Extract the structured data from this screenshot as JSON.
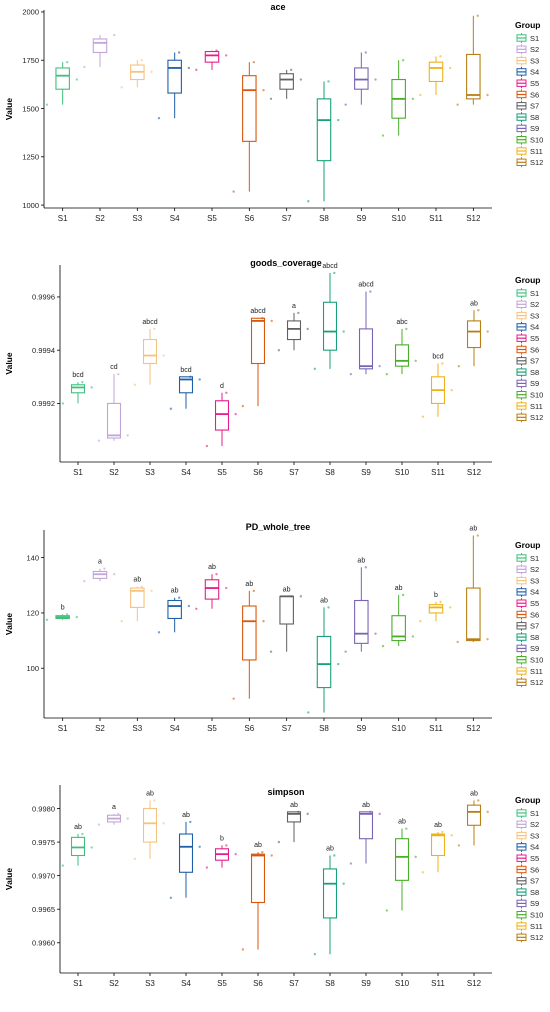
{
  "legend_title": "Group",
  "groups": [
    "S1",
    "S2",
    "S3",
    "S4",
    "S5",
    "S6",
    "S7",
    "S8",
    "S9",
    "S10",
    "S11",
    "S12"
  ],
  "colors": [
    "#3ec07c",
    "#c2a5d8",
    "#f7c27e",
    "#1f5fa8",
    "#e51d8a",
    "#d9570d",
    "#606060",
    "#18a07a",
    "#7a63b3",
    "#48ad28",
    "#f0b21a",
    "#b87e16"
  ],
  "chart_data": [
    {
      "type": "box",
      "title": "ace",
      "xlabel": "",
      "ylabel": "Value",
      "ylim": [
        985,
        2010
      ],
      "yticks": [
        1000,
        1250,
        1500,
        1750,
        2000
      ],
      "ytick_labels": [
        "1000",
        "1250",
        "1500",
        "1750",
        "2000"
      ],
      "categories": [
        "S1",
        "S2",
        "S3",
        "S4",
        "S5",
        "S6",
        "S7",
        "S8",
        "S9",
        "S10",
        "S11",
        "S12"
      ],
      "boxes": [
        {
          "min": 1520,
          "q1": 1600,
          "median": 1670,
          "q3": 1710,
          "max": 1740
        },
        {
          "min": 1715,
          "q1": 1790,
          "median": 1840,
          "q3": 1860,
          "max": 1880
        },
        {
          "min": 1610,
          "q1": 1650,
          "median": 1690,
          "q3": 1725,
          "max": 1750
        },
        {
          "min": 1450,
          "q1": 1580,
          "median": 1710,
          "q3": 1750,
          "max": 1790
        },
        {
          "min": 1700,
          "q1": 1740,
          "median": 1775,
          "q3": 1795,
          "max": 1800
        },
        {
          "min": 1070,
          "q1": 1330,
          "median": 1595,
          "q3": 1670,
          "max": 1740
        },
        {
          "min": 1550,
          "q1": 1600,
          "median": 1650,
          "q3": 1680,
          "max": 1700
        },
        {
          "min": 1020,
          "q1": 1230,
          "median": 1440,
          "q3": 1550,
          "max": 1640
        },
        {
          "min": 1520,
          "q1": 1600,
          "median": 1650,
          "q3": 1710,
          "max": 1790
        },
        {
          "min": 1360,
          "q1": 1450,
          "median": 1550,
          "q3": 1650,
          "max": 1750
        },
        {
          "min": 1570,
          "q1": 1640,
          "median": 1710,
          "q3": 1740,
          "max": 1770
        },
        {
          "min": 1520,
          "q1": 1550,
          "median": 1570,
          "q3": 1780,
          "max": 1980
        }
      ],
      "points": [
        [
          1520,
          1650,
          1740
        ],
        [
          1715,
          1880,
          1840
        ],
        [
          1610,
          1690,
          1750
        ],
        [
          1450,
          1710,
          1790
        ],
        [
          1700,
          1775,
          1800
        ],
        [
          1070,
          1595,
          1740
        ],
        [
          1550,
          1650,
          1700
        ],
        [
          1020,
          1440,
          1640
        ],
        [
          1520,
          1650,
          1790
        ],
        [
          1360,
          1550,
          1750
        ],
        [
          1570,
          1710,
          1770
        ],
        [
          1520,
          1570,
          1980
        ]
      ],
      "letters": [
        "",
        "",
        "",
        "",
        "",
        "",
        "",
        "",
        "",
        "",
        "",
        ""
      ]
    },
    {
      "type": "box",
      "title": "goods_coverage",
      "xlabel": "",
      "ylabel": "Value",
      "ylim": [
        0.99898,
        0.99972
      ],
      "yticks": [
        0.9992,
        0.9994,
        0.9996
      ],
      "ytick_labels": [
        "0.9992",
        "0.9994",
        "0.9996"
      ],
      "categories": [
        "S1",
        "S2",
        "S3",
        "S4",
        "S5",
        "S6",
        "S7",
        "S8",
        "S9",
        "S10",
        "S11",
        "S12"
      ],
      "boxes": [
        {
          "min": 0.9992,
          "q1": 0.99924,
          "median": 0.99926,
          "q3": 0.99927,
          "max": 0.99928
        },
        {
          "min": 0.99906,
          "q1": 0.99907,
          "median": 0.99908,
          "q3": 0.9992,
          "max": 0.99931
        },
        {
          "min": 0.99927,
          "q1": 0.99935,
          "median": 0.99938,
          "q3": 0.99944,
          "max": 0.99948
        },
        {
          "min": 0.99918,
          "q1": 0.99924,
          "median": 0.99929,
          "q3": 0.9993,
          "max": 0.9993
        },
        {
          "min": 0.99904,
          "q1": 0.9991,
          "median": 0.99916,
          "q3": 0.99921,
          "max": 0.99924
        },
        {
          "min": 0.99919,
          "q1": 0.99935,
          "median": 0.99951,
          "q3": 0.99952,
          "max": 0.99952
        },
        {
          "min": 0.9994,
          "q1": 0.99944,
          "median": 0.99948,
          "q3": 0.99951,
          "max": 0.99954
        },
        {
          "min": 0.99933,
          "q1": 0.9994,
          "median": 0.99947,
          "q3": 0.99958,
          "max": 0.99969
        },
        {
          "min": 0.99931,
          "q1": 0.99933,
          "median": 0.99934,
          "q3": 0.99948,
          "max": 0.99962
        },
        {
          "min": 0.99931,
          "q1": 0.99934,
          "median": 0.99936,
          "q3": 0.99942,
          "max": 0.99948
        },
        {
          "min": 0.99915,
          "q1": 0.9992,
          "median": 0.99925,
          "q3": 0.9993,
          "max": 0.99935
        },
        {
          "min": 0.99934,
          "q1": 0.99941,
          "median": 0.99947,
          "q3": 0.99951,
          "max": 0.99955
        }
      ],
      "points": [
        [
          0.9992,
          0.99926,
          0.99928
        ],
        [
          0.99906,
          0.99908,
          0.99931
        ],
        [
          0.99927,
          0.99938,
          0.99948
        ],
        [
          0.99918,
          0.99929,
          0.9993
        ],
        [
          0.99904,
          0.99916,
          0.99924
        ],
        [
          0.99919,
          0.99951,
          0.99952
        ],
        [
          0.9994,
          0.99948,
          0.99954
        ],
        [
          0.99933,
          0.99947,
          0.99969
        ],
        [
          0.99931,
          0.99934,
          0.99962
        ],
        [
          0.99931,
          0.99936,
          0.99948
        ],
        [
          0.99915,
          0.99925,
          0.99935
        ],
        [
          0.99934,
          0.99947,
          0.99955
        ]
      ],
      "letters": [
        "bcd",
        "cd",
        "abcd",
        "bcd",
        "d",
        "abcd",
        "a",
        "abcd",
        "abcd",
        "abc",
        "bcd",
        "ab"
      ]
    },
    {
      "type": "box",
      "title": "PD_whole_tree",
      "xlabel": "",
      "ylabel": "Value",
      "ylim": [
        82,
        150
      ],
      "yticks": [
        100,
        120,
        140
      ],
      "ytick_labels": [
        "100",
        "120",
        "140"
      ],
      "categories": [
        "S1",
        "S2",
        "S3",
        "S4",
        "S5",
        "S6",
        "S7",
        "S8",
        "S9",
        "S10",
        "S11",
        "S12"
      ],
      "boxes": [
        {
          "min": 117.5,
          "q1": 118.0,
          "median": 118.5,
          "q3": 119.0,
          "max": 119.5
        },
        {
          "min": 131.5,
          "q1": 132.5,
          "median": 134.0,
          "q3": 135.0,
          "max": 136.0
        },
        {
          "min": 117.0,
          "q1": 122.0,
          "median": 128.0,
          "q3": 129.0,
          "max": 129.5
        },
        {
          "min": 113.0,
          "q1": 118.0,
          "median": 122.5,
          "q3": 124.5,
          "max": 125.5
        },
        {
          "min": 121.5,
          "q1": 125.0,
          "median": 129.0,
          "q3": 132.0,
          "max": 134.0
        },
        {
          "min": 89.0,
          "q1": 103.0,
          "median": 117.0,
          "q3": 122.5,
          "max": 128.0
        },
        {
          "min": 106.0,
          "q1": 116.0,
          "median": 126.0,
          "q3": 126.0,
          "max": 126.0
        },
        {
          "min": 84.0,
          "q1": 93.0,
          "median": 101.5,
          "q3": 111.5,
          "max": 122.0
        },
        {
          "min": 106.0,
          "q1": 109.0,
          "median": 112.5,
          "q3": 124.5,
          "max": 136.5
        },
        {
          "min": 108.0,
          "q1": 110.0,
          "median": 111.5,
          "q3": 119.0,
          "max": 126.5
        },
        {
          "min": 117.0,
          "q1": 120.0,
          "median": 122.0,
          "q3": 123.0,
          "max": 124.0
        },
        {
          "min": 109.5,
          "q1": 110.0,
          "median": 110.5,
          "q3": 129.0,
          "max": 148.0
        }
      ],
      "points": [
        [
          117.5,
          118.5,
          119.5
        ],
        [
          131.5,
          134.0,
          136.0
        ],
        [
          117.0,
          128.0,
          129.5
        ],
        [
          113.0,
          122.5,
          125.5
        ],
        [
          121.5,
          129.0,
          134.0
        ],
        [
          89.0,
          117.0,
          128.0
        ],
        [
          106.0,
          126.0,
          126.0
        ],
        [
          84.0,
          101.5,
          122.0
        ],
        [
          106.0,
          112.5,
          136.5
        ],
        [
          108.0,
          111.5,
          126.5
        ],
        [
          117.0,
          122.0,
          124.0
        ],
        [
          109.5,
          110.5,
          148.0
        ]
      ],
      "letters": [
        "b",
        "a",
        "ab",
        "ab",
        "ab",
        "ab",
        "ab",
        "ab",
        "ab",
        "ab",
        "b",
        "ab"
      ]
    },
    {
      "type": "box",
      "title": "simpson",
      "xlabel": "",
      "ylabel": "Value",
      "ylim": [
        0.99555,
        0.99835
      ],
      "yticks": [
        0.996,
        0.9965,
        0.997,
        0.9975,
        0.998
      ],
      "ytick_labels": [
        "0.9960",
        "0.9965",
        "0.9970",
        "0.9975",
        "0.9980"
      ],
      "categories": [
        "S1",
        "S2",
        "S3",
        "S4",
        "S5",
        "S6",
        "S7",
        "S8",
        "S9",
        "S10",
        "S11",
        "S12"
      ],
      "boxes": [
        {
          "min": 0.99715,
          "q1": 0.9973,
          "median": 0.99742,
          "q3": 0.99757,
          "max": 0.99762
        },
        {
          "min": 0.99776,
          "q1": 0.9978,
          "median": 0.99785,
          "q3": 0.9979,
          "max": 0.99792
        },
        {
          "min": 0.99725,
          "q1": 0.9975,
          "median": 0.99778,
          "q3": 0.998,
          "max": 0.99812
        },
        {
          "min": 0.99667,
          "q1": 0.99705,
          "median": 0.99743,
          "q3": 0.99762,
          "max": 0.9978
        },
        {
          "min": 0.99712,
          "q1": 0.99723,
          "median": 0.99732,
          "q3": 0.9974,
          "max": 0.99745
        },
        {
          "min": 0.9959,
          "q1": 0.9966,
          "median": 0.9973,
          "q3": 0.99732,
          "max": 0.99735
        },
        {
          "min": 0.9975,
          "q1": 0.9978,
          "median": 0.99792,
          "q3": 0.99795,
          "max": 0.99795
        },
        {
          "min": 0.99583,
          "q1": 0.99637,
          "median": 0.99688,
          "q3": 0.9971,
          "max": 0.9973
        },
        {
          "min": 0.99718,
          "q1": 0.99755,
          "median": 0.99792,
          "q3": 0.99795,
          "max": 0.99795
        },
        {
          "min": 0.99648,
          "q1": 0.99693,
          "median": 0.99728,
          "q3": 0.99755,
          "max": 0.9977
        },
        {
          "min": 0.99705,
          "q1": 0.9973,
          "median": 0.9976,
          "q3": 0.99762,
          "max": 0.99765
        },
        {
          "min": 0.99745,
          "q1": 0.99775,
          "median": 0.99795,
          "q3": 0.99805,
          "max": 0.99812
        }
      ],
      "points": [
        [
          0.99715,
          0.99742,
          0.99762
        ],
        [
          0.99776,
          0.99785,
          0.99792
        ],
        [
          0.99725,
          0.99778,
          0.99812
        ],
        [
          0.99667,
          0.99743,
          0.9978
        ],
        [
          0.99712,
          0.99732,
          0.99745
        ],
        [
          0.9959,
          0.9973,
          0.99735
        ],
        [
          0.9975,
          0.99792,
          0.99795
        ],
        [
          0.99583,
          0.99688,
          0.9973
        ],
        [
          0.99718,
          0.99792,
          0.99795
        ],
        [
          0.99648,
          0.99728,
          0.9977
        ],
        [
          0.99705,
          0.9976,
          0.99765
        ],
        [
          0.99745,
          0.99795,
          0.99812
        ]
      ],
      "letters": [
        "ab",
        "a",
        "ab",
        "ab",
        "b",
        "ab",
        "ab",
        "ab",
        "ab",
        "ab",
        "ab",
        "ab"
      ]
    }
  ]
}
